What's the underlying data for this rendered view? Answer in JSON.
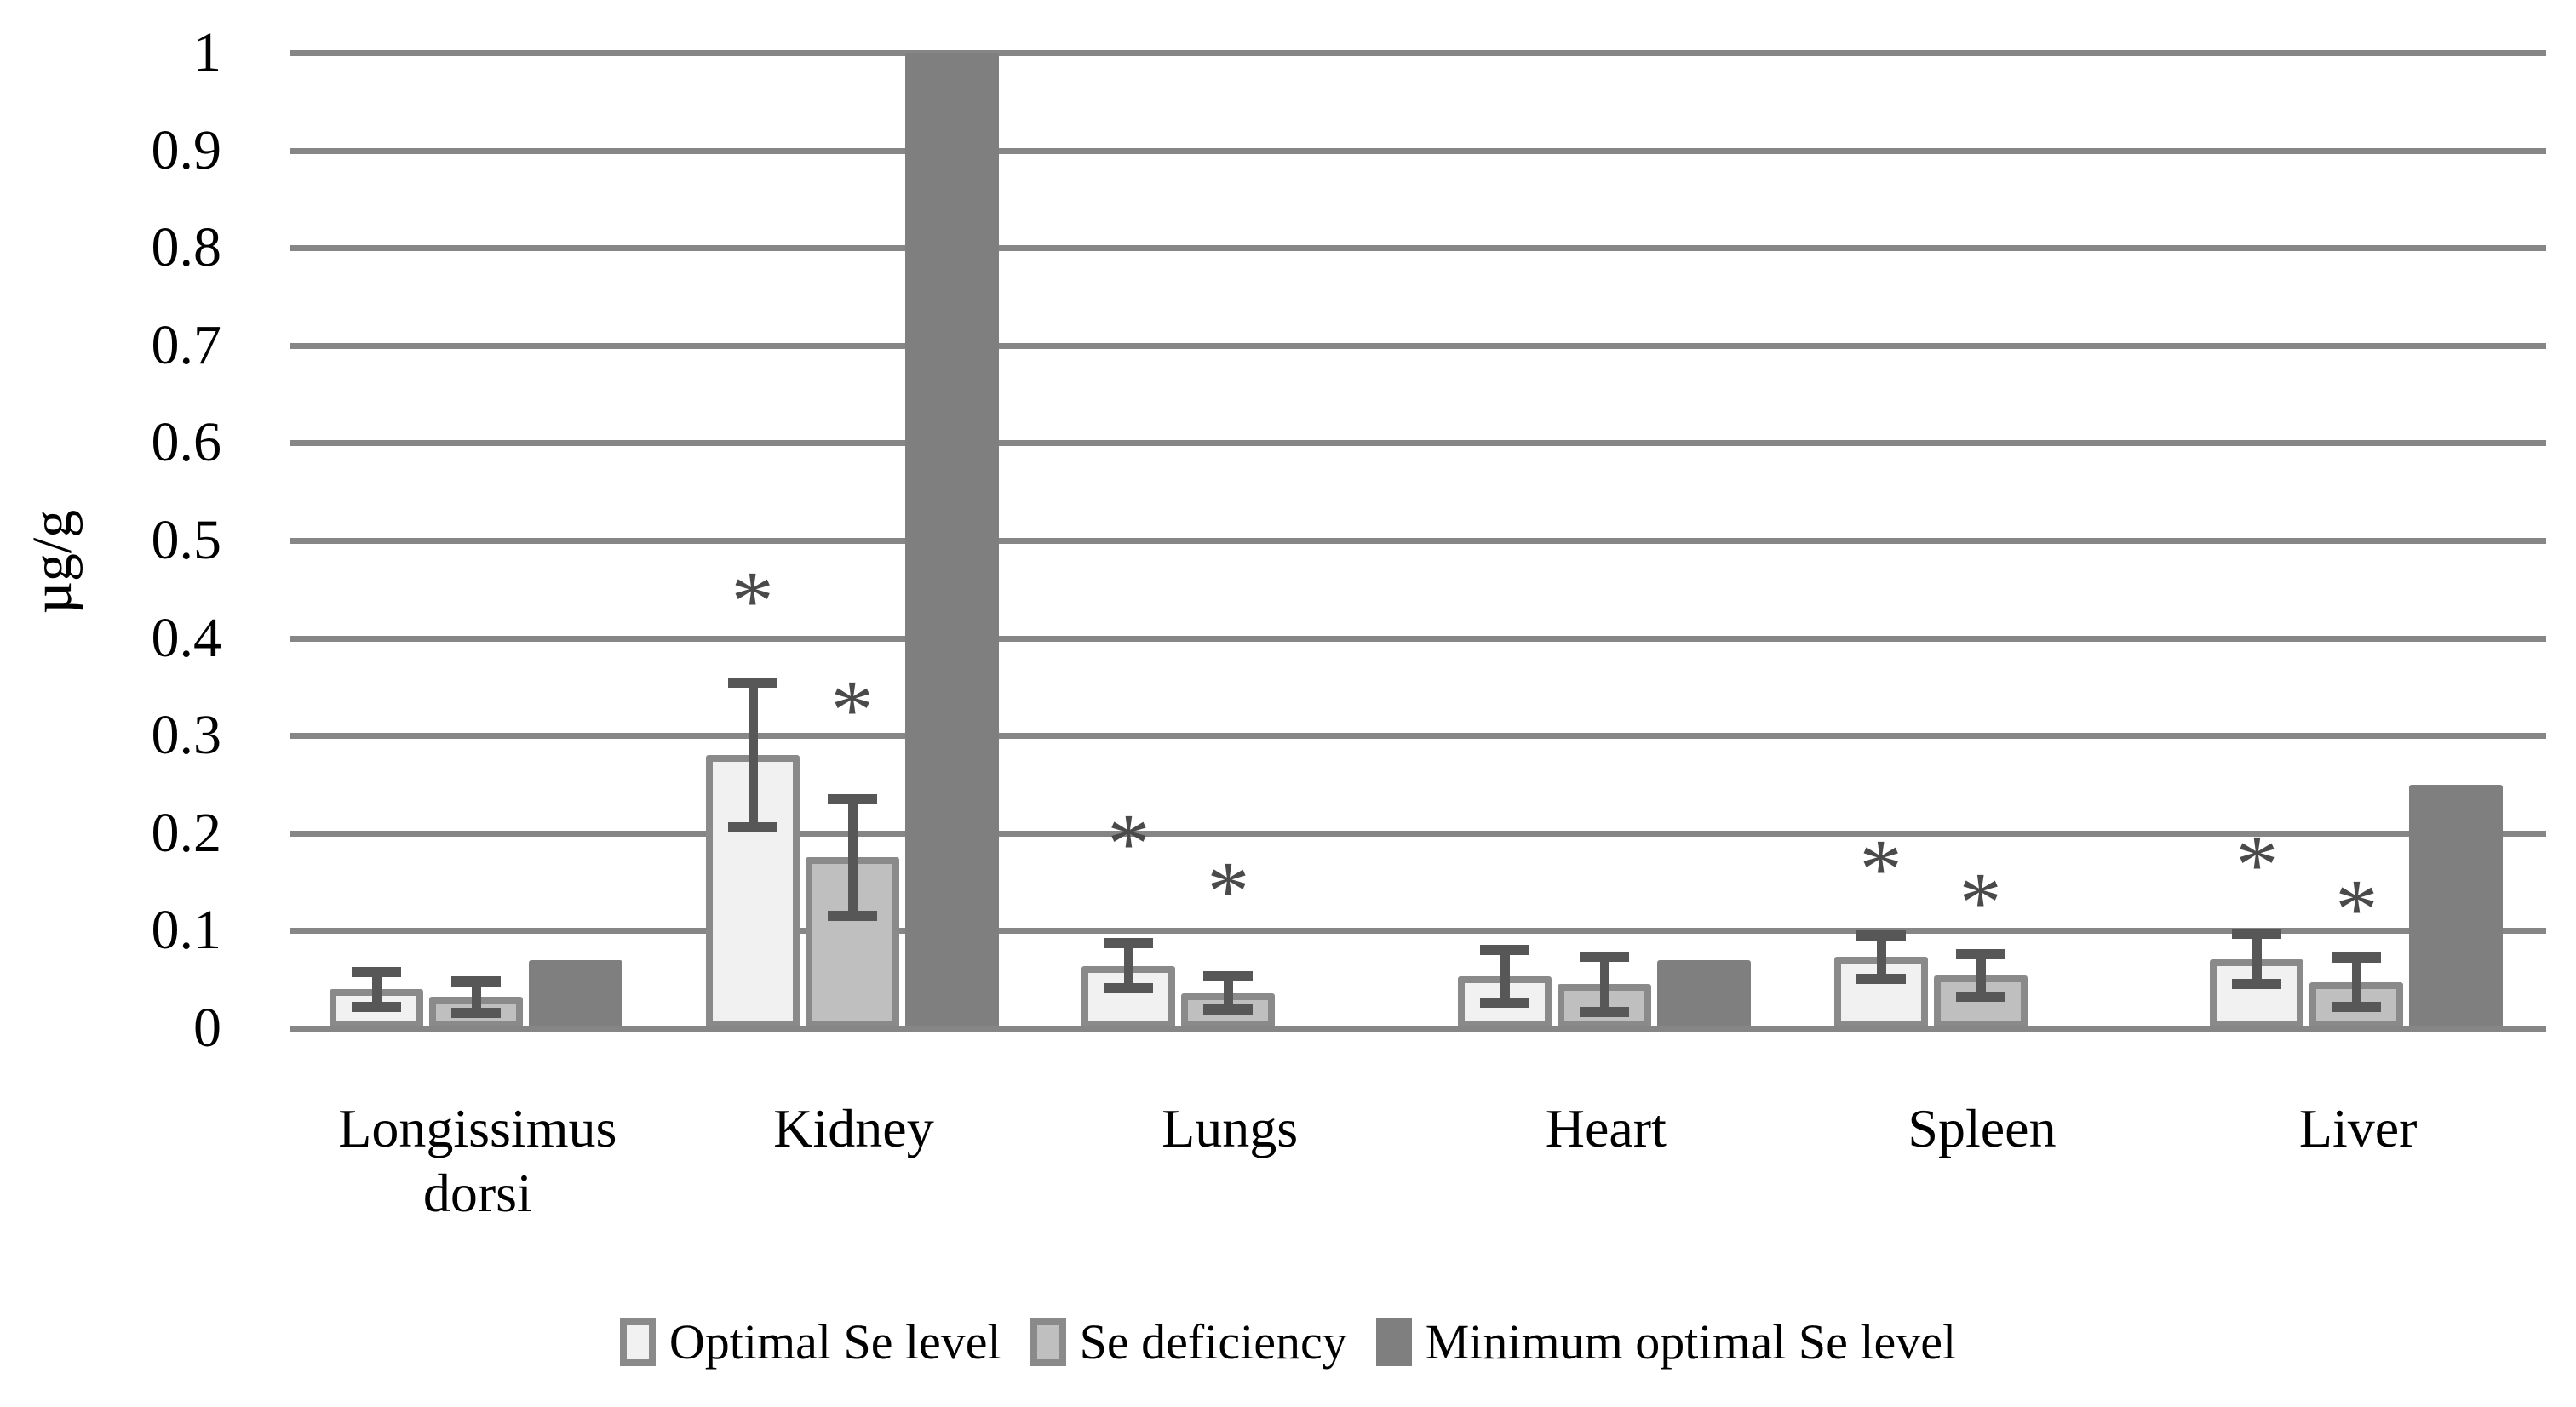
{
  "chart_data": {
    "type": "bar",
    "title": "",
    "ylabel": "µg/g",
    "xlabel": "",
    "ylim": [
      0,
      1
    ],
    "ytick_step": 0.1,
    "y_tick_labels": [
      "1",
      "0.9",
      "0.8",
      "0.7",
      "0.6",
      "0.5",
      "0.4",
      "0.3",
      "0.2",
      "0.1",
      "0"
    ],
    "grid": true,
    "legend_position": "bottom",
    "significance_marker": "*",
    "categories": [
      "Longissimus dorsi",
      "Kidney",
      "Lungs",
      "Heart",
      "Spleen",
      "Liver"
    ],
    "series": [
      {
        "name": "Optimal Se level",
        "fill": "#f1f1f1",
        "border": "#8a8a8a",
        "values": [
          0.04,
          0.28,
          0.064,
          0.053,
          0.073,
          0.071
        ],
        "errors": [
          0.018,
          0.074,
          0.023,
          0.027,
          0.022,
          0.026
        ],
        "sig_y": [
          null,
          0.447,
          0.198,
          null,
          0.172,
          0.176
        ]
      },
      {
        "name": "Se deficiency",
        "fill": "#bfbfbf",
        "border": "#8a8a8a",
        "values": [
          0.032,
          0.175,
          0.036,
          0.045,
          0.054,
          0.047
        ],
        "errors": [
          0.016,
          0.06,
          0.017,
          0.028,
          0.022,
          0.025
        ],
        "sig_y": [
          null,
          0.335,
          0.149,
          null,
          0.138,
          0.131
        ]
      },
      {
        "name": "Minimum optimal Se level",
        "fill": "#7f7f7f",
        "border": null,
        "values": [
          0.07,
          1.0,
          0,
          0.07,
          0,
          0.25
        ],
        "errors": null,
        "sig_y": null
      }
    ],
    "colors": {
      "gridline": "#868686",
      "error_bar": "#575757",
      "text": "#000000",
      "background": "#ffffff"
    }
  }
}
